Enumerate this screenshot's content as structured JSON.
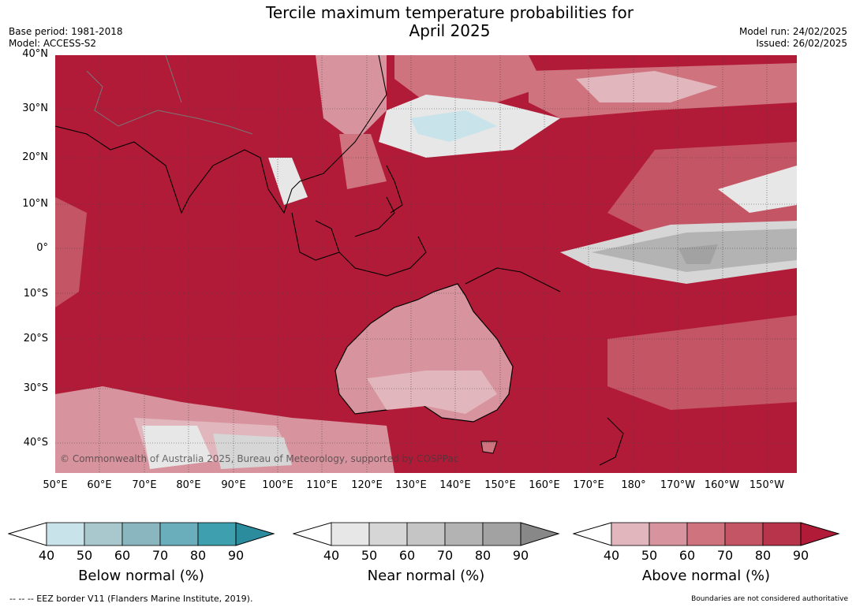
{
  "header": {
    "title_line1": "Tercile maximum temperature probabilities for",
    "title_line2": "April 2025",
    "base_period": "Base period: 1981-2018",
    "model": "Model: ACCESS-S2",
    "model_run": "Model run: 24/02/2025",
    "issued": "Issued: 26/02/2025"
  },
  "map": {
    "lat_labels": [
      "40°N",
      "30°N",
      "20°N",
      "10°N",
      "0°",
      "10°S",
      "20°S",
      "30°S",
      "40°S"
    ],
    "lon_labels": [
      "50°E",
      "60°E",
      "70°E",
      "80°E",
      "90°E",
      "100°E",
      "110°E",
      "120°E",
      "130°E",
      "140°E",
      "150°E",
      "160°E",
      "170°E",
      "180°",
      "170°W",
      "160°W",
      "150°W"
    ],
    "copyright": "© Commonwealth of Australia 2025, Bureau of Meteorology, supported by COSPPac",
    "dominant_color": "#b21b38"
  },
  "legends": [
    {
      "title": "Below normal (%)",
      "ticks": [
        "40",
        "50",
        "60",
        "70",
        "80",
        "90"
      ],
      "colors": [
        "#c9e3ea",
        "#a8c8cd",
        "#8ab7bf",
        "#6aaebb",
        "#3e9faf",
        "#2a8c9c"
      ]
    },
    {
      "title": "Near normal (%)",
      "ticks": [
        "40",
        "50",
        "60",
        "70",
        "80",
        "90"
      ],
      "colors": [
        "#e7e7e7",
        "#d6d6d6",
        "#c5c5c5",
        "#b3b3b3",
        "#a2a2a2",
        "#888888"
      ]
    },
    {
      "title": "Above normal (%)",
      "ticks": [
        "40",
        "50",
        "60",
        "70",
        "80",
        "90"
      ],
      "colors": [
        "#e1b6bd",
        "#d8949e",
        "#cf737f",
        "#c45565",
        "#b8344a",
        "#b21b38"
      ]
    }
  ],
  "footer": {
    "eez_note": "--  --  -- EEZ border V11 (Flanders Marine Institute, 2019).",
    "boundaries_note": "Boundaries are not considered authoritative"
  }
}
